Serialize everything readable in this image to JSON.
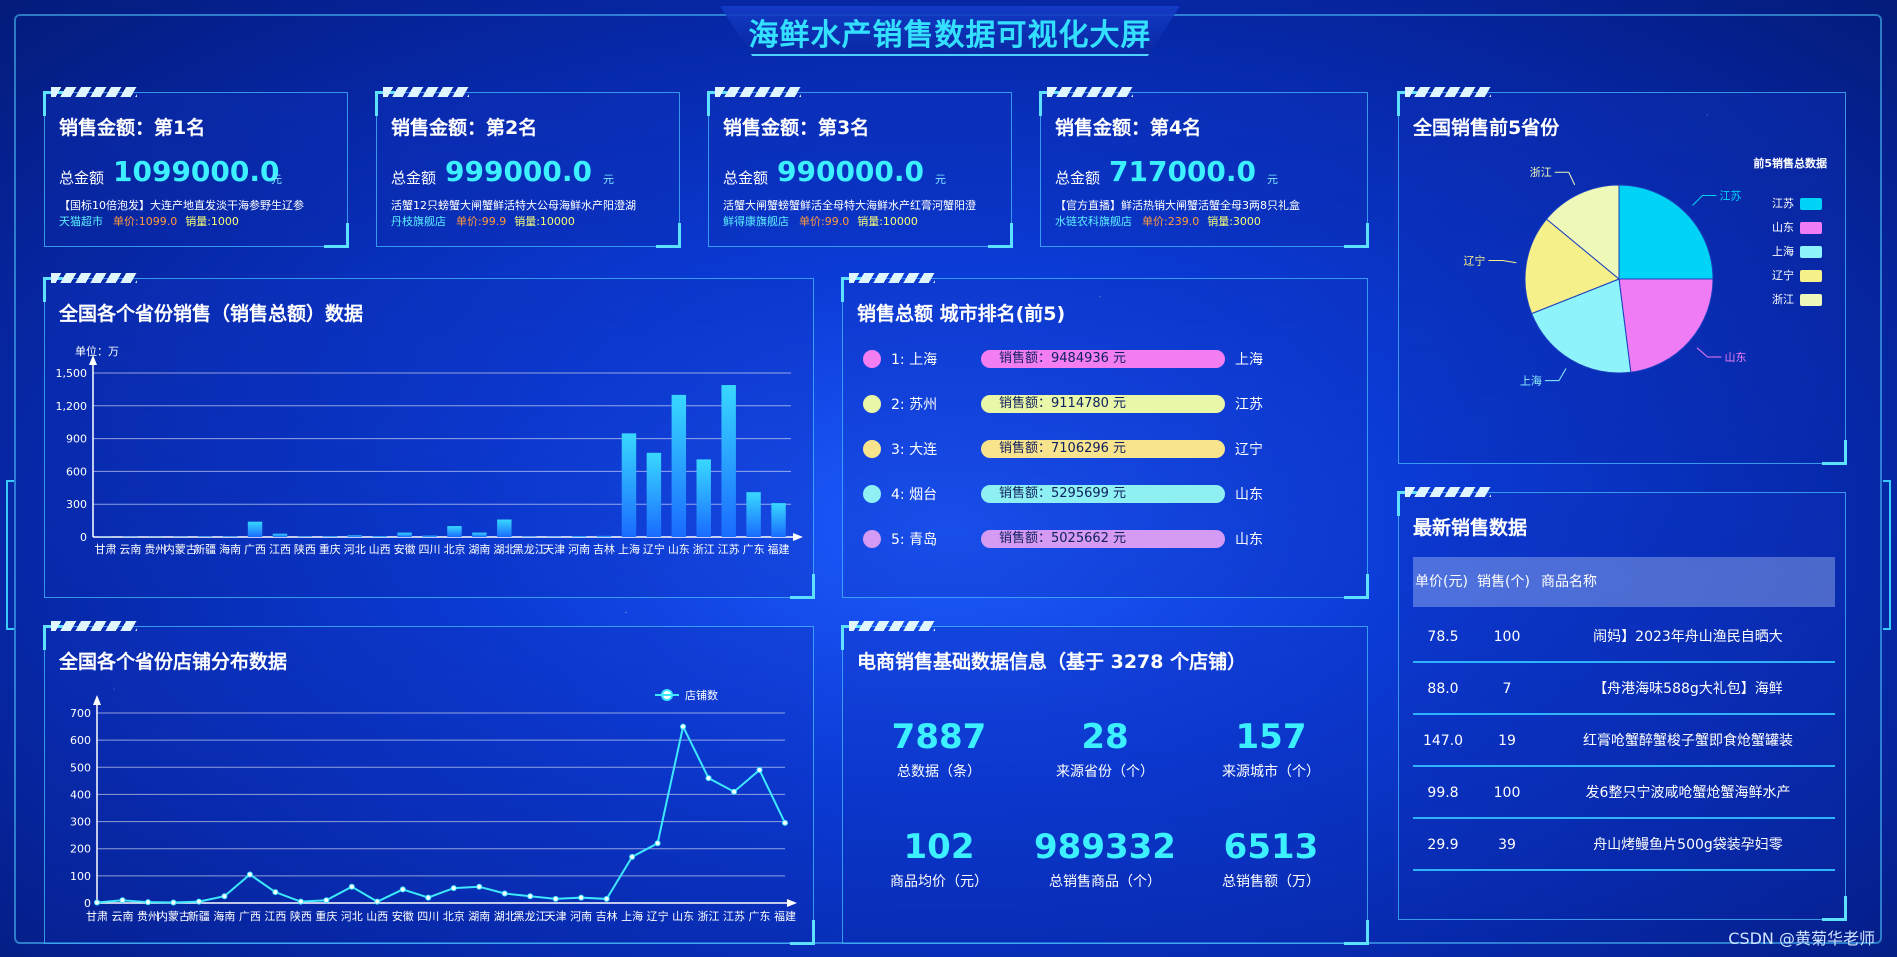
{
  "page_title": "海鲜水产销售数据可视化大屏",
  "kpis": [
    {
      "title": "销售金额：第1名",
      "total_label": "总金额",
      "amount": "1099000.0",
      "unit": "元",
      "product": "【国标10倍泡发】大连产地直发淡干海参野生辽参",
      "shop": "天猫超市",
      "price": "单价:1099.0",
      "volume": "销量:1000"
    },
    {
      "title": "销售金额：第2名",
      "total_label": "总金额",
      "amount": "999000.0",
      "unit": "元",
      "product": "活蟹12只螃蟹大闸蟹鲜活特大公母海鲜水产阳澄湖",
      "shop": "丹枝旗舰店",
      "price": "单价:99.9",
      "volume": "销量:10000"
    },
    {
      "title": "销售金额：第3名",
      "total_label": "总金额",
      "amount": "990000.0",
      "unit": "元",
      "product": "活蟹大闸蟹螃蟹鲜活全母特大海鲜水产红膏河蟹阳澄",
      "shop": "鲜得康旗舰店",
      "price": "单价:99.0",
      "volume": "销量:10000"
    },
    {
      "title": "销售金额：第4名",
      "total_label": "总金额",
      "amount": "717000.0",
      "unit": "元",
      "product": "【官方直播】鲜活热销大闸蟹活蟹全母3两8只礼盒",
      "shop": "水链农科旗舰店",
      "price": "单价:239.0",
      "volume": "销量:3000"
    }
  ],
  "province_sales": {
    "title": "全国各个省份销售（销售总额）数据",
    "unit_label": "单位：万",
    "chart_data": {
      "type": "bar",
      "categories": [
        "甘肃",
        "云南",
        "贵州",
        "内蒙古",
        "新疆",
        "海南",
        "广西",
        "江西",
        "陕西",
        "重庆",
        "河北",
        "山西",
        "安徽",
        "四川",
        "北京",
        "湖南",
        "湖北",
        "黑龙江",
        "天津",
        "河南",
        "吉林",
        "上海",
        "辽宁",
        "山东",
        "浙江",
        "江苏",
        "广东",
        "福建"
      ],
      "values": [
        2,
        3,
        2,
        3,
        5,
        5,
        140,
        30,
        5,
        6,
        15,
        8,
        40,
        12,
        100,
        40,
        160,
        4,
        3,
        8,
        10,
        948,
        770,
        1300,
        710,
        1390,
        410,
        310
      ],
      "ylim": [
        0,
        1500
      ],
      "yticks": [
        "0",
        "300",
        "600",
        "900",
        "1,200",
        "1,500"
      ]
    }
  },
  "city_rank": {
    "title": "销售总额 城市排名(前5)",
    "rows": [
      {
        "rank": "1:",
        "city": "上海",
        "bar": "销售额：9484936 元",
        "prov": "上海",
        "color": "#f37ef2"
      },
      {
        "rank": "2:",
        "city": "苏州",
        "bar": "销售额：9114780 元",
        "prov": "江苏",
        "color": "#e8f7a8"
      },
      {
        "rank": "3:",
        "city": "大连",
        "bar": "销售额：7106296 元",
        "prov": "辽宁",
        "color": "#f8e48c"
      },
      {
        "rank": "4:",
        "city": "烟台",
        "bar": "销售额：5295699 元",
        "prov": "山东",
        "color": "#8ff0f3"
      },
      {
        "rank": "5:",
        "city": "青岛",
        "bar": "销售额：5025662 元",
        "prov": "山东",
        "color": "#d59af3"
      }
    ]
  },
  "top5_prov": {
    "title": "全国销售前5省份",
    "legend_title": "前5销售总数据",
    "chart_data": {
      "type": "pie",
      "labels": [
        "江苏",
        "山东",
        "上海",
        "辽宁",
        "浙江"
      ],
      "values": [
        25,
        23,
        21,
        17,
        14
      ],
      "colors": [
        "#00d4f6",
        "#f07cf5",
        "#8ff3fb",
        "#f5f08a",
        "#eef8b8"
      ]
    }
  },
  "latest_sales": {
    "title": "最新销售数据",
    "head": {
      "price": "单价(元)",
      "qty": "销售(个)",
      "name": "商品名称"
    },
    "rows": [
      {
        "price": "78.5",
        "qty": "100",
        "name": "闹妈】2023年舟山渔民自晒大"
      },
      {
        "price": "88.0",
        "qty": "7",
        "name": "【舟港海味588g大礼包】海鲜"
      },
      {
        "price": "147.0",
        "qty": "19",
        "name": "红膏呛蟹醉蟹梭子蟹即食炝蟹罐装"
      },
      {
        "price": "99.8",
        "qty": "100",
        "name": "发6整只宁波咸呛蟹炝蟹海鲜水产"
      },
      {
        "price": "29.9",
        "qty": "39",
        "name": "舟山烤鳗鱼片500g袋装孕妇零"
      }
    ]
  },
  "shop_dist": {
    "title": "全国各个省份店铺分布数据",
    "legend": "店铺数",
    "chart_data": {
      "type": "line",
      "categories": [
        "甘肃",
        "云南",
        "贵州",
        "内蒙古",
        "新疆",
        "海南",
        "广西",
        "江西",
        "陕西",
        "重庆",
        "河北",
        "山西",
        "安徽",
        "四川",
        "北京",
        "湖南",
        "湖北",
        "黑龙江",
        "天津",
        "河南",
        "吉林",
        "上海",
        "辽宁",
        "山东",
        "浙江",
        "江苏",
        "广东",
        "福建"
      ],
      "series": [
        {
          "name": "店铺数",
          "values": [
            2,
            10,
            3,
            2,
            5,
            25,
            105,
            40,
            5,
            10,
            60,
            5,
            50,
            20,
            55,
            60,
            35,
            25,
            15,
            20,
            15,
            170,
            220,
            650,
            460,
            410,
            490,
            295
          ]
        }
      ],
      "ylim": [
        0,
        700
      ],
      "yticks": [
        "0",
        "100",
        "200",
        "300",
        "400",
        "500",
        "600",
        "700"
      ]
    }
  },
  "basic_info": {
    "title": "电商销售基础数据信息（基于 3278 个店铺）",
    "stats": [
      {
        "value": "7887",
        "label": "总数据（条）"
      },
      {
        "value": "28",
        "label": "来源省份（个）"
      },
      {
        "value": "157",
        "label": "来源城市（个）"
      },
      {
        "value": "102",
        "label": "商品均价（元）"
      },
      {
        "value": "989332",
        "label": "总销售商品（个）"
      },
      {
        "value": "6513",
        "label": "总销售额（万）"
      }
    ]
  },
  "footer": "CSDN @黄菊华老师"
}
